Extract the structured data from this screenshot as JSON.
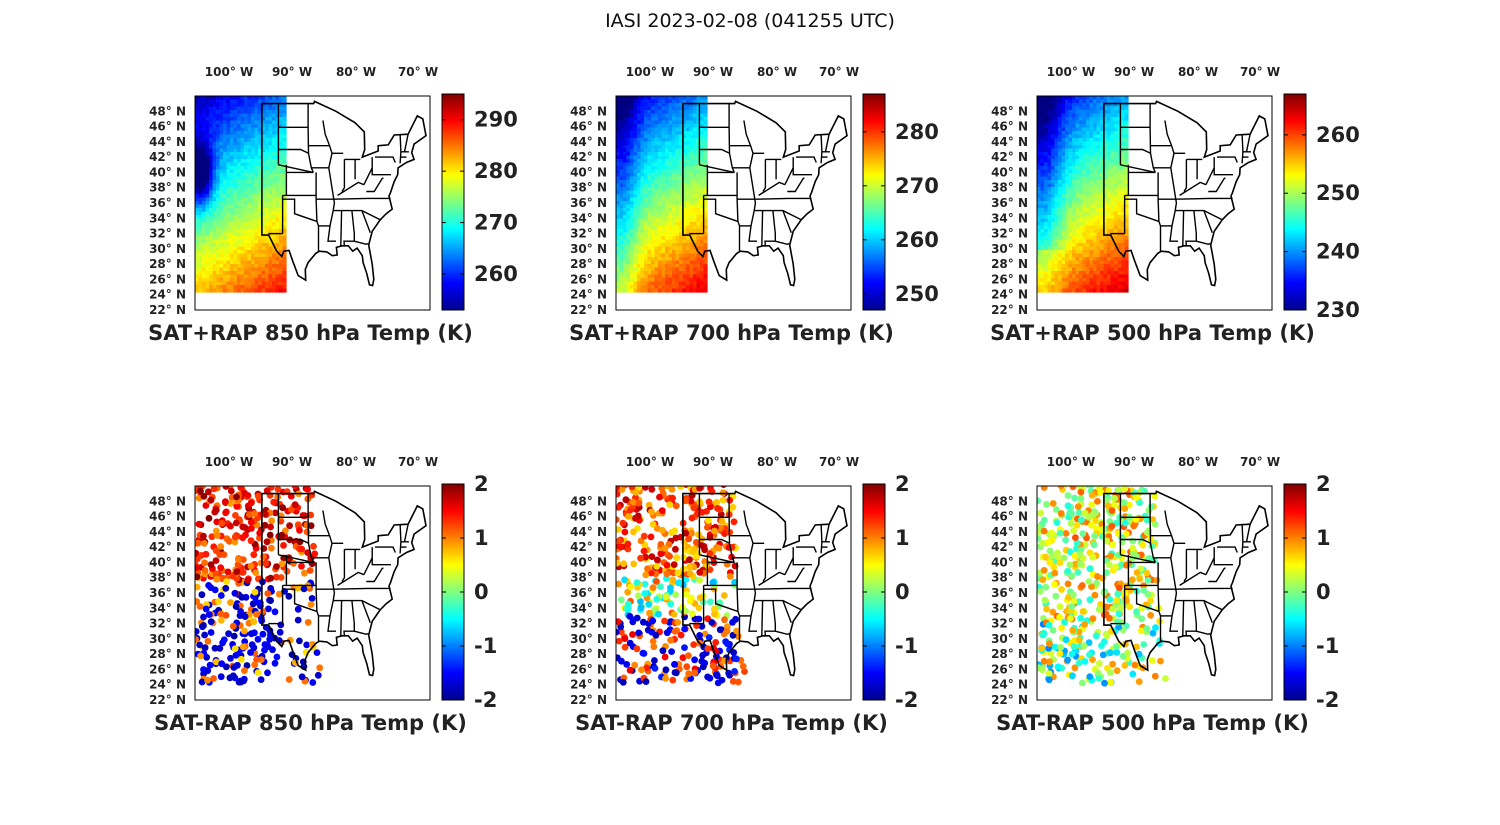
{
  "figure": {
    "title": "IASI 2023-02-08 (041255 UTC)"
  },
  "axes": {
    "lon_labels": [
      "100",
      "90",
      "80",
      "70"
    ],
    "lon_suffix": "W",
    "lat_labels": [
      "48",
      "46",
      "44",
      "42",
      "40",
      "38",
      "36",
      "34",
      "32",
      "30",
      "28",
      "26",
      "24",
      "22"
    ],
    "lat_suffix": "N",
    "degree_symbol": "°"
  },
  "panels": [
    {
      "id": "sum850",
      "title": "SAT+RAP 850 hPa Temp (K)",
      "kind": "temp",
      "colorbar": {
        "min": 253,
        "max": 295,
        "ticks": [
          "290",
          "280",
          "270",
          "260"
        ]
      }
    },
    {
      "id": "sum700",
      "title": "SAT+RAP 700 hPa Temp (K)",
      "kind": "temp",
      "colorbar": {
        "min": 247,
        "max": 287,
        "ticks": [
          "280",
          "270",
          "260",
          "250"
        ]
      }
    },
    {
      "id": "sum500",
      "title": "SAT+RAP 500 hPa Temp (K)",
      "kind": "temp",
      "colorbar": {
        "min": 230,
        "max": 267,
        "ticks": [
          "260",
          "250",
          "240",
          "230"
        ]
      }
    },
    {
      "id": "diff850",
      "title": "SAT-RAP 850 hPa Temp (K)",
      "kind": "diff",
      "colorbar": {
        "min": -2,
        "max": 2,
        "ticks": [
          "2",
          "1",
          "0",
          "-1",
          "-2"
        ]
      }
    },
    {
      "id": "diff700",
      "title": "SAT-RAP 700 hPa Temp (K)",
      "kind": "diff",
      "colorbar": {
        "min": -2,
        "max": 2,
        "ticks": [
          "2",
          "1",
          "0",
          "-1",
          "-2"
        ]
      }
    },
    {
      "id": "diff500",
      "title": "SAT-RAP 500 hPa Temp (K)",
      "kind": "diff",
      "colorbar": {
        "min": -2,
        "max": 2,
        "ticks": [
          "2",
          "1",
          "0",
          "-1",
          "-2"
        ]
      }
    }
  ],
  "colormap": "jet"
}
